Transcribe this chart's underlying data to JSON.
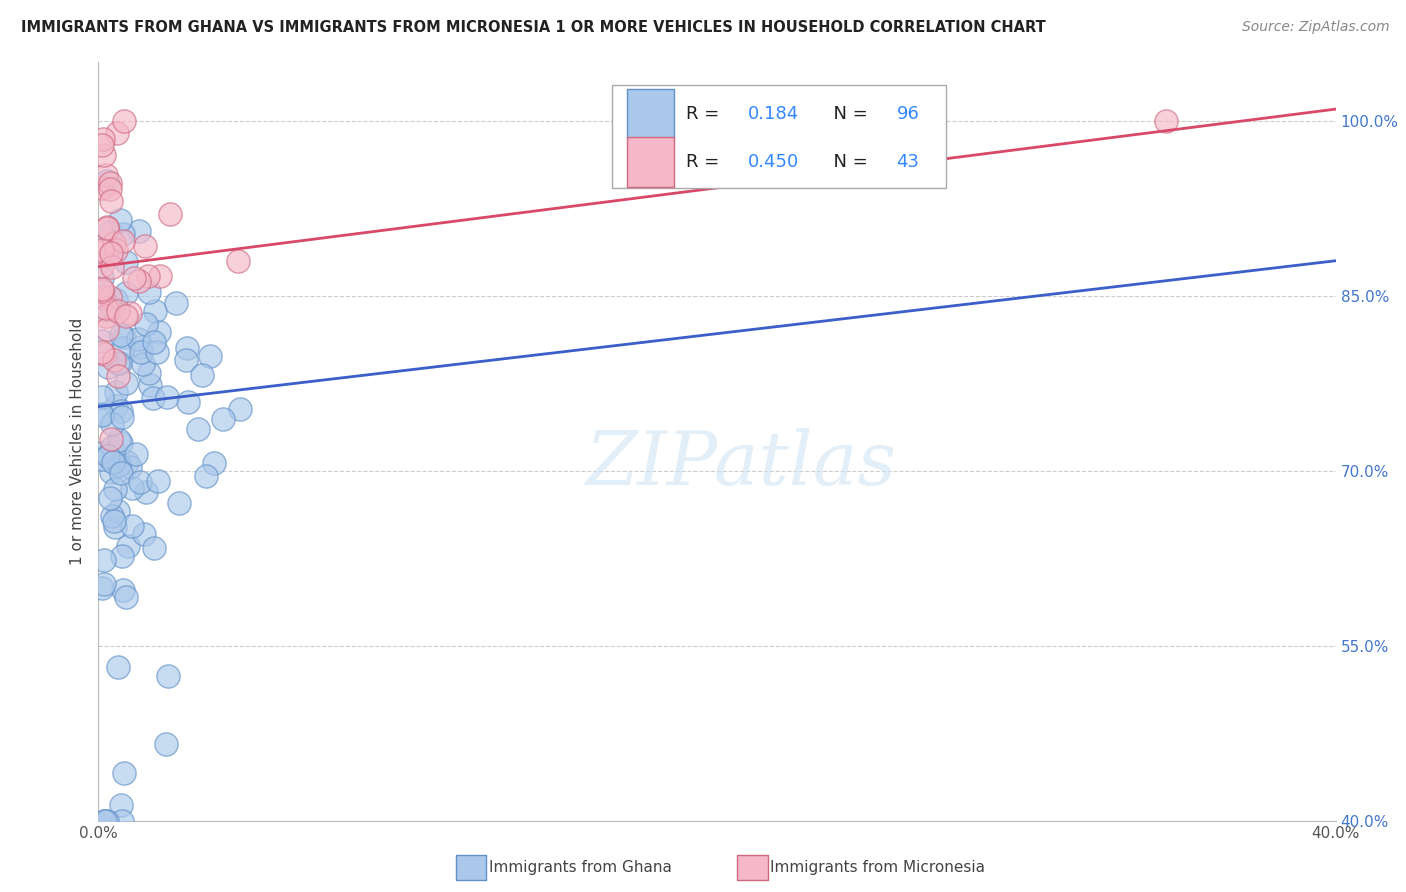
{
  "title": "IMMIGRANTS FROM GHANA VS IMMIGRANTS FROM MICRONESIA 1 OR MORE VEHICLES IN HOUSEHOLD CORRELATION CHART",
  "source": "Source: ZipAtlas.com",
  "ylabel": "1 or more Vehicles in Household",
  "xlim": [
    0.0,
    0.4
  ],
  "ylim": [
    0.4,
    1.05
  ],
  "ytick_labels": [
    "40.0%",
    "55.0%",
    "70.0%",
    "85.0%",
    "100.0%"
  ],
  "yticks": [
    0.4,
    0.55,
    0.7,
    0.85,
    1.0
  ],
  "ghana_color": "#aac8ea",
  "micronesia_color": "#f4b8c8",
  "ghana_edge": "#6090c8",
  "micronesia_edge": "#d06880",
  "trend_ghana": "#3a5fc8",
  "trend_micronesia": "#d84868",
  "legend_ghana": "Immigrants from Ghana",
  "legend_micronesia": "Immigrants from Micronesia",
  "R_ghana": 0.184,
  "N_ghana": 96,
  "R_micronesia": 0.45,
  "N_micronesia": 43,
  "watermark": "ZIPatlas",
  "background_color": "#ffffff",
  "grid_color": "#cccccc",
  "ghana_trend_x0": 0.0,
  "ghana_trend_y0": 0.755,
  "ghana_trend_x1": 0.4,
  "ghana_trend_y1": 0.88,
  "micronesia_trend_x0": 0.0,
  "micronesia_trend_y0": 0.875,
  "micronesia_trend_x1": 0.4,
  "micronesia_trend_y1": 1.01
}
